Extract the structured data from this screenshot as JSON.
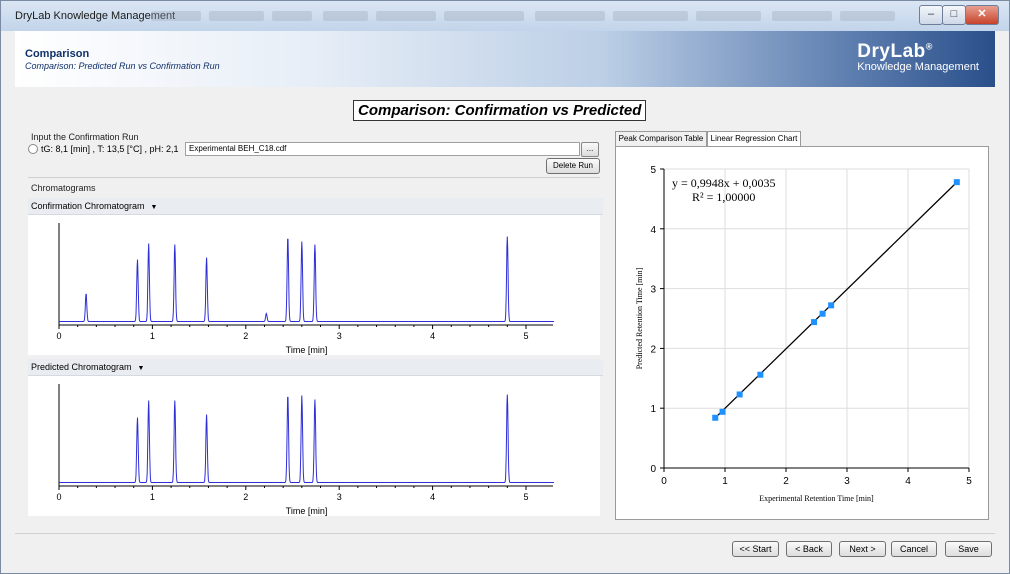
{
  "window": {
    "title": "DryLab Knowledge Management",
    "controls": {
      "minimize": "–",
      "maximize": "□",
      "close": "✕"
    }
  },
  "banner": {
    "heading": "Comparison",
    "subheading": "Comparison: Predicted Run vs Confirmation Run",
    "logo_name": "DryLab",
    "logo_mark": "®",
    "logo_tagline": "Knowledge Management"
  },
  "page_title": "Comparison: Confirmation vs Predicted",
  "confirmation_input": {
    "label": "Input the Confirmation Run",
    "run_info": "tG:  8,1 [min] ,   T:  13,5 [°C] ,   pH:  2,1",
    "file_value": "Experimental BEH_C18.cdf",
    "browse_label": "...",
    "delete_label": "Delete Run"
  },
  "chromatograms": {
    "section_label": "Chromatograms",
    "confirmation": {
      "title": "Confirmation Chromatogram",
      "xlabel": "Time [min]",
      "ticks": [
        "0",
        "1",
        "2",
        "3",
        "4",
        "5"
      ],
      "peaks": [
        {
          "t": 0.29,
          "h": 0.28
        },
        {
          "t": 0.84,
          "h": 0.62
        },
        {
          "t": 0.96,
          "h": 0.78
        },
        {
          "t": 1.24,
          "h": 0.77
        },
        {
          "t": 1.58,
          "h": 0.64
        },
        {
          "t": 2.22,
          "h": 0.08
        },
        {
          "t": 2.45,
          "h": 0.85
        },
        {
          "t": 2.6,
          "h": 0.8
        },
        {
          "t": 2.74,
          "h": 0.77
        },
        {
          "t": 4.8,
          "h": 0.85
        }
      ]
    },
    "predicted": {
      "title": "Predicted Chromatogram",
      "xlabel": "Time [min]",
      "ticks": [
        "0",
        "1",
        "2",
        "3",
        "4",
        "5"
      ],
      "peaks": [
        {
          "t": 0.84,
          "h": 0.65
        },
        {
          "t": 0.96,
          "h": 0.82
        },
        {
          "t": 1.24,
          "h": 0.82
        },
        {
          "t": 1.58,
          "h": 0.68
        },
        {
          "t": 2.45,
          "h": 0.88
        },
        {
          "t": 2.6,
          "h": 0.87
        },
        {
          "t": 2.74,
          "h": 0.83
        },
        {
          "t": 4.8,
          "h": 0.88
        }
      ]
    }
  },
  "tabs": [
    {
      "label": "Peak Comparison Table",
      "active": false
    },
    {
      "label": "Linear Regression Chart",
      "active": true
    }
  ],
  "chart_data": {
    "type": "scatter",
    "equation": "y = 0,9948x  + 0,0035",
    "r_squared": "R² = 1,00000",
    "xlabel": "Experimental Retention Time [min]",
    "ylabel": "Predicted Retention Time [min]",
    "xlim": [
      0,
      5
    ],
    "ylim": [
      0,
      5
    ],
    "xticks": [
      "0",
      "1",
      "2",
      "3",
      "4",
      "5"
    ],
    "yticks": [
      "0",
      "1",
      "2",
      "3",
      "4",
      "5"
    ],
    "grid": true,
    "points": [
      {
        "x": 0.84,
        "y": 0.84
      },
      {
        "x": 0.96,
        "y": 0.94
      },
      {
        "x": 1.24,
        "y": 1.23
      },
      {
        "x": 1.58,
        "y": 1.56
      },
      {
        "x": 2.46,
        "y": 2.44
      },
      {
        "x": 2.6,
        "y": 2.58
      },
      {
        "x": 2.74,
        "y": 2.72
      },
      {
        "x": 4.8,
        "y": 4.78
      }
    ],
    "fit_line": {
      "x": [
        0.84,
        4.8
      ],
      "y": [
        0.839,
        4.778
      ]
    },
    "point_color": "#1e90ff",
    "line_color": "#000000"
  },
  "footer": {
    "start": "<< Start",
    "back": "< Back",
    "next": "Next >",
    "cancel": "Cancel",
    "save": "Save"
  }
}
